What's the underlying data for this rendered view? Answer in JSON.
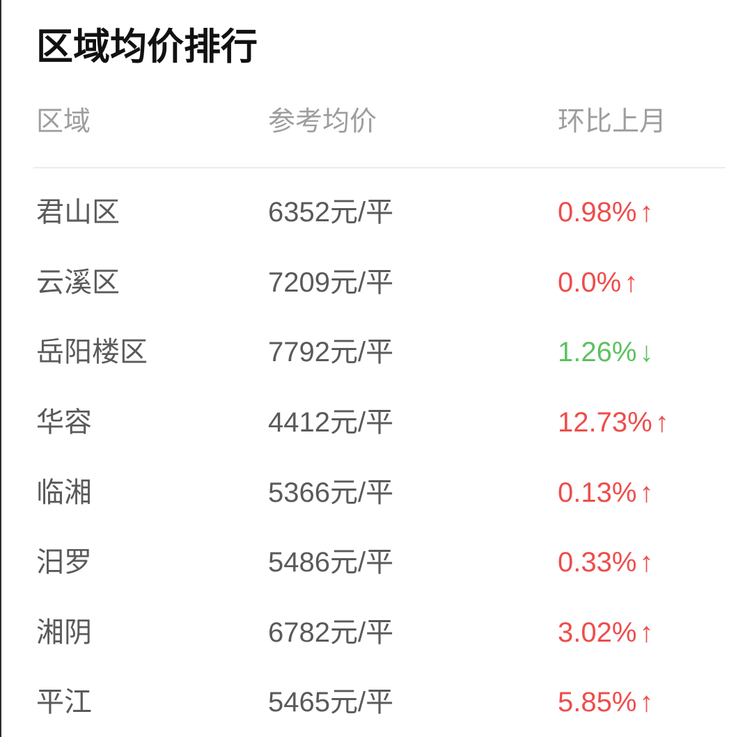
{
  "page": {
    "title": "区域均价排行"
  },
  "table": {
    "columns": [
      {
        "key": "region",
        "label": "区域"
      },
      {
        "key": "price",
        "label": "参考均价"
      },
      {
        "key": "change",
        "label": "环比上月"
      }
    ],
    "rows": [
      {
        "region": "君山区",
        "price": "6352元/平",
        "change": "0.98%",
        "direction": "up"
      },
      {
        "region": "云溪区",
        "price": "7209元/平",
        "change": "0.0%",
        "direction": "up"
      },
      {
        "region": "岳阳楼区",
        "price": "7792元/平",
        "change": "1.26%",
        "direction": "down"
      },
      {
        "region": "华容",
        "price": "4412元/平",
        "change": "12.73%",
        "direction": "up"
      },
      {
        "region": "临湘",
        "price": "5366元/平",
        "change": "0.13%",
        "direction": "up"
      },
      {
        "region": "汨罗",
        "price": "5486元/平",
        "change": "0.33%",
        "direction": "up"
      },
      {
        "region": "湘阴",
        "price": "6782元/平",
        "change": "3.02%",
        "direction": "up"
      },
      {
        "region": "平江",
        "price": "5465元/平",
        "change": "5.85%",
        "direction": "up"
      }
    ]
  },
  "icons": {
    "up_arrow": "↑",
    "down_arrow": "↓"
  },
  "colors": {
    "up": "#ee4d4b",
    "down": "#5bc25f",
    "title_text": "#111111",
    "header_text": "#9e9e9e",
    "body_text": "#5a5a5a",
    "divider": "#ececec"
  }
}
